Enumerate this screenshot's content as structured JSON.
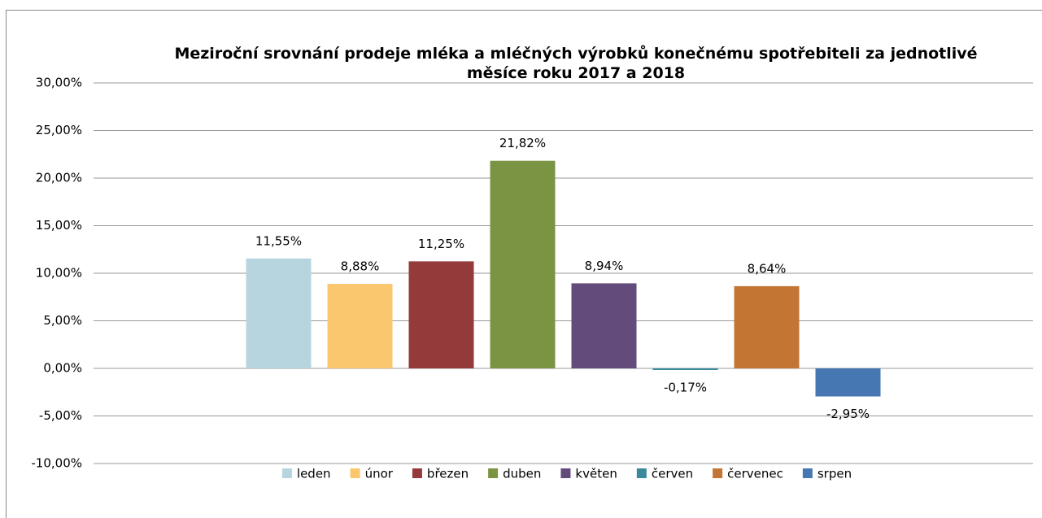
{
  "chart_data": {
    "type": "bar",
    "title": "Meziroční srovnání prodeje mléka a mléčných výrobků konečnému spotřebiteli za jednotlivé měsíce roku 2017 a 2018",
    "categories": [
      null
    ],
    "series": [
      {
        "name": "leden",
        "color": "#b7d5df",
        "values": [
          11.55
        ],
        "value_labels": [
          "11,55%"
        ]
      },
      {
        "name": "únor",
        "color": "#fac76e",
        "values": [
          8.88
        ],
        "value_labels": [
          "8,88%"
        ]
      },
      {
        "name": "březen",
        "color": "#953a3a",
        "values": [
          11.25
        ],
        "value_labels": [
          "11,25%"
        ]
      },
      {
        "name": "duben",
        "color": "#7a9443",
        "values": [
          21.82
        ],
        "value_labels": [
          "21,82%"
        ]
      },
      {
        "name": "květen",
        "color": "#634b7c",
        "values": [
          8.94
        ],
        "value_labels": [
          "8,94%"
        ]
      },
      {
        "name": "červen",
        "color": "#3a8a9c",
        "values": [
          -0.17
        ],
        "value_labels": [
          "-0,17%"
        ]
      },
      {
        "name": "červenec",
        "color": "#c37634",
        "values": [
          8.64
        ],
        "value_labels": [
          "8,64%"
        ]
      },
      {
        "name": "srpen",
        "color": "#4777b2",
        "values": [
          -2.95
        ],
        "value_labels": [
          "-2,95%"
        ]
      }
    ],
    "ylim": [
      -10,
      30
    ],
    "yticks": [
      {
        "value": -10,
        "label": "-10,00%"
      },
      {
        "value": -5,
        "label": "-5,00%"
      },
      {
        "value": 0,
        "label": "0,00%"
      },
      {
        "value": 5,
        "label": "5,00%"
      },
      {
        "value": 10,
        "label": "10,00%"
      },
      {
        "value": 15,
        "label": "15,00%"
      },
      {
        "value": 20,
        "label": "20,00%"
      },
      {
        "value": 25,
        "label": "25,00%"
      },
      {
        "value": 30,
        "label": "30,00%"
      }
    ],
    "grid": true,
    "legend": "bottom"
  }
}
